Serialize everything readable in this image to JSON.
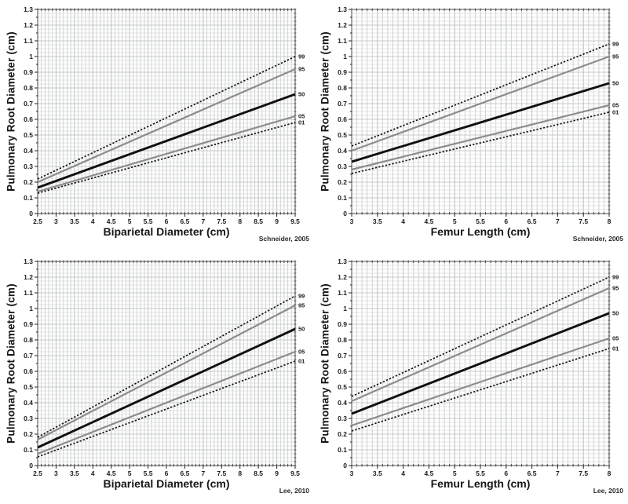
{
  "page": {
    "background": "#ffffff"
  },
  "styles": {
    "grid_h": "#e4e6e6",
    "grid_v": "#cfd3d3",
    "grid_major": "#c4c8c8",
    "axis": "#4a4a4a",
    "tick_color": "#1c1c1c",
    "series_styles": {
      "dotted-black": {
        "color": "#141414",
        "width": 1.7,
        "dash": "2.3 2.1"
      },
      "solid-gray": {
        "color": "#8c8c8c",
        "width": 2.2,
        "dash": ""
      },
      "solid-black-thick": {
        "color": "#101010",
        "width": 2.9,
        "dash": ""
      }
    }
  },
  "chart_data": [
    {
      "type": "line",
      "id": "bpd-schneider",
      "xlabel": "Biparietal Diameter (cm)",
      "ylabel": "Pulmonary Root Diameter (cm)",
      "attribution": "Schneider, 2005",
      "xlim": [
        2.5,
        9.5
      ],
      "ylim": [
        0,
        1.3
      ],
      "grid": {
        "x_minor": 0.1,
        "y_minor": 0.025,
        "x_major": 0.5,
        "y_major": 0.1
      },
      "x_ticks": [
        {
          "v": 2.5,
          "label": "2.5"
        },
        {
          "v": 3,
          "label": "3"
        },
        {
          "v": 3.5,
          "label": "3.5"
        },
        {
          "v": 4,
          "label": "4"
        },
        {
          "v": 4.5,
          "label": "4.5"
        },
        {
          "v": 5,
          "label": "5"
        },
        {
          "v": 5.5,
          "label": "5.5"
        },
        {
          "v": 6,
          "label": "6"
        },
        {
          "v": 6.5,
          "label": "6.5"
        },
        {
          "v": 7,
          "label": "7"
        },
        {
          "v": 7.5,
          "label": "7.5"
        },
        {
          "v": 8,
          "label": "8"
        },
        {
          "v": 8.5,
          "label": "8.5"
        },
        {
          "v": 9,
          "label": "9"
        },
        {
          "v": 9.5,
          "label": "9.5"
        }
      ],
      "y_ticks": [
        {
          "v": 0,
          "label": "0"
        },
        {
          "v": 0.1,
          "label": "0.1"
        },
        {
          "v": 0.2,
          "label": "0.2"
        },
        {
          "v": 0.3,
          "label": "0.3"
        },
        {
          "v": 0.4,
          "label": "0.4"
        },
        {
          "v": 0.5,
          "label": "0.5"
        },
        {
          "v": 0.6,
          "label": "0.6"
        },
        {
          "v": 0.7,
          "label": "0.7"
        },
        {
          "v": 0.8,
          "label": "0.8"
        },
        {
          "v": 0.9,
          "label": "0.9"
        },
        {
          "v": 1,
          "label": "1"
        },
        {
          "v": 1.1,
          "label": "1.1"
        },
        {
          "v": 1.2,
          "label": "1.2"
        },
        {
          "v": 1.3,
          "label": "1.3"
        }
      ],
      "series": [
        {
          "name": "99",
          "style": "dotted-black",
          "x": [
            2.5,
            9.5
          ],
          "y": [
            0.22,
            1.0
          ]
        },
        {
          "name": "95",
          "style": "solid-gray",
          "x": [
            2.5,
            9.5
          ],
          "y": [
            0.2,
            0.92
          ]
        },
        {
          "name": "50",
          "style": "solid-black-thick",
          "x": [
            2.5,
            9.5
          ],
          "y": [
            0.165,
            0.76
          ]
        },
        {
          "name": "05",
          "style": "solid-gray",
          "x": [
            2.5,
            9.5
          ],
          "y": [
            0.14,
            0.62
          ]
        },
        {
          "name": "01",
          "style": "dotted-black",
          "x": [
            2.5,
            9.5
          ],
          "y": [
            0.13,
            0.58
          ]
        }
      ]
    },
    {
      "type": "line",
      "id": "fl-schneider",
      "xlabel": "Femur Length (cm)",
      "ylabel": "Pulmonary Root Diameter (cm)",
      "attribution": "Schneider, 2005",
      "xlim": [
        3,
        8
      ],
      "ylim": [
        0,
        1.3
      ],
      "grid": {
        "x_minor": 0.1,
        "y_minor": 0.025,
        "x_major": 0.5,
        "y_major": 0.1
      },
      "x_ticks": [
        {
          "v": 3,
          "label": "3"
        },
        {
          "v": 3.5,
          "label": "3.5"
        },
        {
          "v": 4,
          "label": "4"
        },
        {
          "v": 4.5,
          "label": "4.5"
        },
        {
          "v": 5,
          "label": "5"
        },
        {
          "v": 5.5,
          "label": "5.5"
        },
        {
          "v": 6,
          "label": "6"
        },
        {
          "v": 6.5,
          "label": "6.5"
        },
        {
          "v": 7,
          "label": "7"
        },
        {
          "v": 7.5,
          "label": "7.5"
        },
        {
          "v": 8,
          "label": "8"
        }
      ],
      "y_ticks": [
        {
          "v": 0,
          "label": "0"
        },
        {
          "v": 0.1,
          "label": "0.1"
        },
        {
          "v": 0.2,
          "label": "0.2"
        },
        {
          "v": 0.3,
          "label": "0.3"
        },
        {
          "v": 0.4,
          "label": "0.4"
        },
        {
          "v": 0.5,
          "label": "0.5"
        },
        {
          "v": 0.6,
          "label": "0.6"
        },
        {
          "v": 0.7,
          "label": "0.7"
        },
        {
          "v": 0.8,
          "label": "0.8"
        },
        {
          "v": 0.9,
          "label": "0.9"
        },
        {
          "v": 1,
          "label": "1"
        },
        {
          "v": 1.1,
          "label": "1.1"
        },
        {
          "v": 1.2,
          "label": "1.2"
        },
        {
          "v": 1.3,
          "label": "1.3"
        }
      ],
      "series": [
        {
          "name": "99",
          "style": "dotted-black",
          "x": [
            3,
            8
          ],
          "y": [
            0.43,
            1.08
          ]
        },
        {
          "name": "95",
          "style": "solid-gray",
          "x": [
            3,
            8
          ],
          "y": [
            0.4,
            1.0
          ]
        },
        {
          "name": "50",
          "style": "solid-black-thick",
          "x": [
            3,
            8
          ],
          "y": [
            0.33,
            0.83
          ]
        },
        {
          "name": "05",
          "style": "solid-gray",
          "x": [
            3,
            8
          ],
          "y": [
            0.28,
            0.69
          ]
        },
        {
          "name": "01",
          "style": "dotted-black",
          "x": [
            3,
            8
          ],
          "y": [
            0.255,
            0.645
          ]
        }
      ]
    },
    {
      "type": "line",
      "id": "bpd-lee",
      "xlabel": "Biparietal Diameter (cm)",
      "ylabel": "Pulmonary Root Diameter (cm)",
      "attribution": "Lee, 2010",
      "xlim": [
        2.5,
        9.5
      ],
      "ylim": [
        0,
        1.3
      ],
      "grid": {
        "x_minor": 0.1,
        "y_minor": 0.025,
        "x_major": 0.5,
        "y_major": 0.1
      },
      "x_ticks": [
        {
          "v": 2.5,
          "label": "2.5"
        },
        {
          "v": 3,
          "label": "3"
        },
        {
          "v": 3.5,
          "label": "3.5"
        },
        {
          "v": 4,
          "label": "4"
        },
        {
          "v": 4.5,
          "label": "4.5"
        },
        {
          "v": 5,
          "label": "5"
        },
        {
          "v": 5.5,
          "label": "5.5"
        },
        {
          "v": 6,
          "label": "6"
        },
        {
          "v": 6.5,
          "label": "6.5"
        },
        {
          "v": 7,
          "label": "7"
        },
        {
          "v": 7.5,
          "label": "7.5"
        },
        {
          "v": 8,
          "label": "8"
        },
        {
          "v": 8.5,
          "label": "8.5"
        },
        {
          "v": 9,
          "label": "9"
        },
        {
          "v": 9.5,
          "label": "9.5"
        }
      ],
      "y_ticks": [
        {
          "v": 0,
          "label": "0"
        },
        {
          "v": 0.1,
          "label": "0.1"
        },
        {
          "v": 0.2,
          "label": "0.2"
        },
        {
          "v": 0.3,
          "label": "0.3"
        },
        {
          "v": 0.4,
          "label": "0.4"
        },
        {
          "v": 0.5,
          "label": "0.5"
        },
        {
          "v": 0.6,
          "label": "0.6"
        },
        {
          "v": 0.7,
          "label": "0.7"
        },
        {
          "v": 0.8,
          "label": "0.8"
        },
        {
          "v": 0.9,
          "label": "0.9"
        },
        {
          "v": 1,
          "label": "1"
        },
        {
          "v": 1.1,
          "label": "1.1"
        },
        {
          "v": 1.2,
          "label": "1.2"
        },
        {
          "v": 1.3,
          "label": "1.3"
        }
      ],
      "series": [
        {
          "name": "99",
          "style": "dotted-black",
          "x": [
            2.5,
            9.5
          ],
          "y": [
            0.18,
            1.08
          ]
        },
        {
          "name": "95",
          "style": "solid-gray",
          "x": [
            2.5,
            9.5
          ],
          "y": [
            0.165,
            1.02
          ]
        },
        {
          "name": "50",
          "style": "solid-black-thick",
          "x": [
            2.5,
            9.5
          ],
          "y": [
            0.115,
            0.87
          ]
        },
        {
          "name": "05",
          "style": "solid-gray",
          "x": [
            2.5,
            9.5
          ],
          "y": [
            0.075,
            0.725
          ]
        },
        {
          "name": "01",
          "style": "dotted-black",
          "x": [
            2.5,
            9.5
          ],
          "y": [
            0.055,
            0.665
          ]
        }
      ]
    },
    {
      "type": "line",
      "id": "fl-lee",
      "xlabel": "Femur Length (cm)",
      "ylabel": "Pulmonary Root Diameter (cm)",
      "attribution": "Lee, 2010",
      "xlim": [
        3,
        8
      ],
      "ylim": [
        0,
        1.3
      ],
      "grid": {
        "x_minor": 0.1,
        "y_minor": 0.025,
        "x_major": 0.5,
        "y_major": 0.1
      },
      "x_ticks": [
        {
          "v": 3,
          "label": "3"
        },
        {
          "v": 3.5,
          "label": "3.5"
        },
        {
          "v": 4,
          "label": "4"
        },
        {
          "v": 4.5,
          "label": "4.5"
        },
        {
          "v": 5,
          "label": "5"
        },
        {
          "v": 5.5,
          "label": "5.5"
        },
        {
          "v": 6,
          "label": "6"
        },
        {
          "v": 6.5,
          "label": "6.5"
        },
        {
          "v": 7,
          "label": "7"
        },
        {
          "v": 7.5,
          "label": "7.5"
        },
        {
          "v": 8,
          "label": "8"
        }
      ],
      "y_ticks": [
        {
          "v": 0,
          "label": "0"
        },
        {
          "v": 0.1,
          "label": "0.1"
        },
        {
          "v": 0.2,
          "label": "0.2"
        },
        {
          "v": 0.3,
          "label": "0.3"
        },
        {
          "v": 0.4,
          "label": "0.4"
        },
        {
          "v": 0.5,
          "label": "0.5"
        },
        {
          "v": 0.6,
          "label": "0.6"
        },
        {
          "v": 0.7,
          "label": "0.7"
        },
        {
          "v": 0.8,
          "label": "0.8"
        },
        {
          "v": 0.9,
          "label": "0.9"
        },
        {
          "v": 1,
          "label": "1"
        },
        {
          "v": 1.1,
          "label": "1.1"
        },
        {
          "v": 1.2,
          "label": "1.2"
        },
        {
          "v": 1.3,
          "label": "1.3"
        }
      ],
      "series": [
        {
          "name": "99",
          "style": "dotted-black",
          "x": [
            3,
            8
          ],
          "y": [
            0.44,
            1.2
          ]
        },
        {
          "name": "95",
          "style": "solid-gray",
          "x": [
            3,
            8
          ],
          "y": [
            0.41,
            1.13
          ]
        },
        {
          "name": "50",
          "style": "solid-black-thick",
          "x": [
            3,
            8
          ],
          "y": [
            0.33,
            0.97
          ]
        },
        {
          "name": "05",
          "style": "solid-gray",
          "x": [
            3,
            8
          ],
          "y": [
            0.255,
            0.81
          ]
        },
        {
          "name": "01",
          "style": "dotted-black",
          "x": [
            3,
            8
          ],
          "y": [
            0.22,
            0.745
          ]
        }
      ]
    }
  ]
}
